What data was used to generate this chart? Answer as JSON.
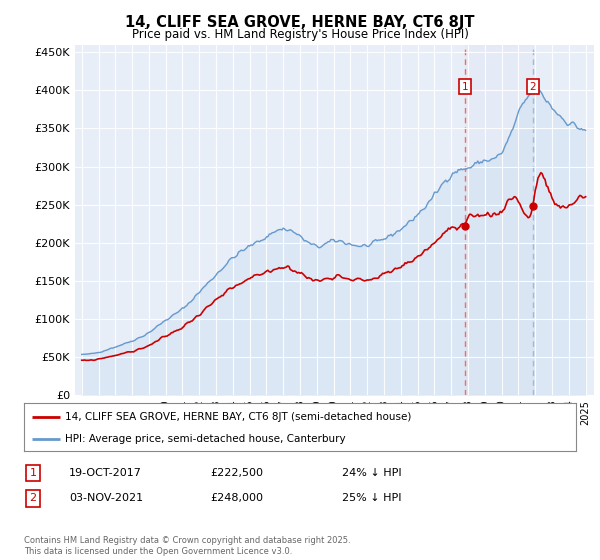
{
  "title": "14, CLIFF SEA GROVE, HERNE BAY, CT6 8JT",
  "subtitle": "Price paid vs. HM Land Registry's House Price Index (HPI)",
  "ylabel_ticks": [
    "£0",
    "£50K",
    "£100K",
    "£150K",
    "£200K",
    "£250K",
    "£300K",
    "£350K",
    "£400K",
    "£450K"
  ],
  "ytick_values": [
    0,
    50000,
    100000,
    150000,
    200000,
    250000,
    300000,
    350000,
    400000,
    450000
  ],
  "ylim": [
    0,
    460000
  ],
  "legend_line1": "14, CLIFF SEA GROVE, HERNE BAY, CT6 8JT (semi-detached house)",
  "legend_line2": "HPI: Average price, semi-detached house, Canterbury",
  "annotation1_date": "19-OCT-2017",
  "annotation1_price": "£222,500",
  "annotation1_hpi": "24% ↓ HPI",
  "annotation2_date": "03-NOV-2021",
  "annotation2_price": "£248,000",
  "annotation2_hpi": "25% ↓ HPI",
  "footer": "Contains HM Land Registry data © Crown copyright and database right 2025.\nThis data is licensed under the Open Government Licence v3.0.",
  "hpi_color": "#6699cc",
  "hpi_fill_color": "#c8daf0",
  "price_color": "#cc0000",
  "vline_color_1": "#ff6666",
  "vline_color_2": "#99bbdd",
  "background_chart": "#e8eef8",
  "sale1_year": 2017.8,
  "sale2_year": 2021.85,
  "sale1_price": 222500,
  "sale2_price": 248000,
  "hpi_years": [
    1995,
    1996,
    1997,
    1998,
    1999,
    2000,
    2001,
    2002,
    2003,
    2004,
    2005,
    2006,
    2007,
    2008,
    2009,
    2010,
    2011,
    2012,
    2013,
    2014,
    2015,
    2016,
    2017,
    2018,
    2019,
    2020,
    2021,
    2022,
    2023,
    2024,
    2025
  ],
  "hpi_vals": [
    53000,
    56000,
    63000,
    71000,
    82000,
    98000,
    113000,
    135000,
    158000,
    180000,
    195000,
    208000,
    218000,
    208000,
    195000,
    202000,
    198000,
    196000,
    205000,
    218000,
    237000,
    262000,
    290000,
    298000,
    308000,
    318000,
    368000,
    398000,
    378000,
    358000,
    348000
  ],
  "price_years": [
    1995,
    1996,
    1997,
    1998,
    1999,
    2000,
    2001,
    2002,
    2003,
    2004,
    2005,
    2006,
    2007,
    2008,
    2009,
    2010,
    2011,
    2012,
    2013,
    2014,
    2015,
    2016,
    2017,
    2017.8,
    2018,
    2019,
    2020,
    2021,
    2021.85,
    2022,
    2023,
    2024,
    2025
  ],
  "price_vals": [
    45000,
    47000,
    52000,
    57000,
    65000,
    77000,
    89000,
    106000,
    124000,
    140000,
    152000,
    161000,
    168000,
    160000,
    150000,
    156000,
    153000,
    151000,
    158000,
    168000,
    182000,
    200000,
    218000,
    222500,
    228000,
    237000,
    243000,
    256000,
    248000,
    268000,
    258000,
    248000,
    262000
  ]
}
